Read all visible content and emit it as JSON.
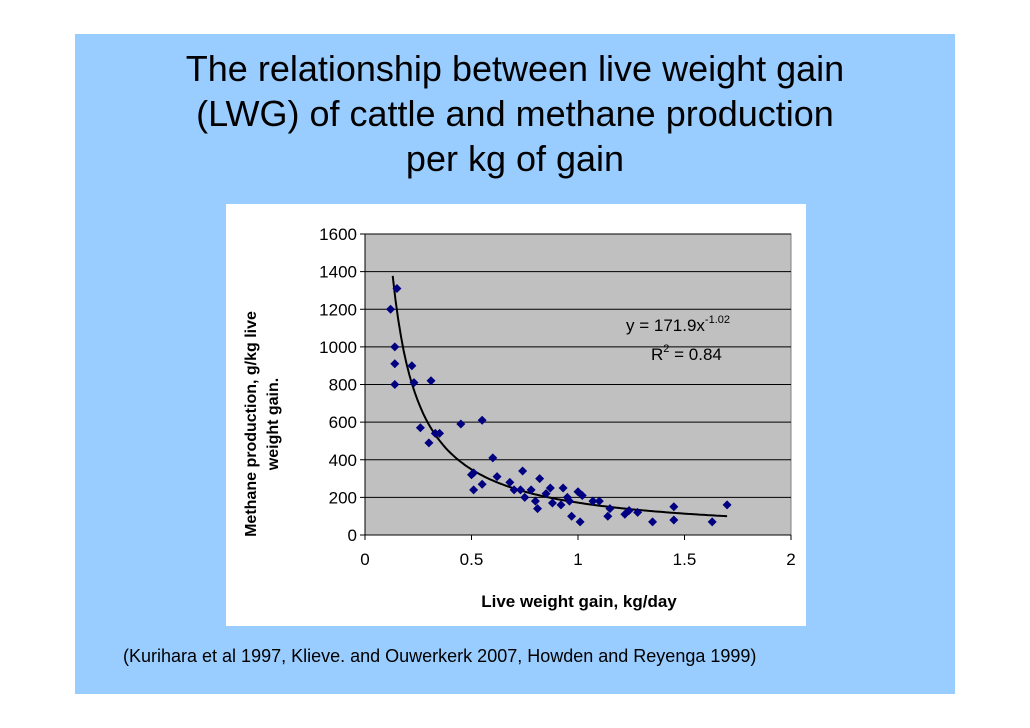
{
  "slide": {
    "title_lines": [
      "The relationship between live weight gain",
      "(LWG) of cattle and methane production",
      "per kg of gain"
    ],
    "citation": "(Kurihara et al 1997, Klieve. and Ouwerkerk 2007, Howden  and Reyenga  1999)"
  },
  "colors": {
    "background": "#99ccff",
    "plot_area": "#c0c0c0",
    "points": "#000080",
    "trendline": "#000000"
  },
  "chart_data": {
    "type": "scatter",
    "title": "",
    "xlabel": "Live weight gain, kg/day",
    "ylabel_lines": [
      "Methane production, g/kg live",
      "weight gain."
    ],
    "xlim": [
      0,
      2
    ],
    "ylim": [
      0,
      1600
    ],
    "xticks": [
      0,
      0.5,
      1,
      1.5,
      2
    ],
    "xtick_labels": [
      "0",
      "0.5",
      "1",
      "1.5",
      "2"
    ],
    "yticks": [
      0,
      200,
      400,
      600,
      800,
      1000,
      1200,
      1400,
      1600
    ],
    "ytick_labels": [
      "0",
      "200",
      "400",
      "600",
      "800",
      "1000",
      "1200",
      "1400",
      "1600"
    ],
    "grid": "horizontal",
    "equation_text": "y = 171.9x",
    "equation_exponent": "-1.02",
    "r2_text": "R",
    "r2_exponent": "2",
    "r2_value": " = 0.84",
    "trendline": {
      "type": "power",
      "a": 171.9,
      "b": -1.02,
      "x_range": [
        0.13,
        1.7
      ]
    },
    "points": [
      {
        "x": 0.12,
        "y": 1200
      },
      {
        "x": 0.15,
        "y": 1310
      },
      {
        "x": 0.14,
        "y": 1000
      },
      {
        "x": 0.14,
        "y": 910
      },
      {
        "x": 0.14,
        "y": 800
      },
      {
        "x": 0.22,
        "y": 900
      },
      {
        "x": 0.23,
        "y": 810
      },
      {
        "x": 0.26,
        "y": 570
      },
      {
        "x": 0.3,
        "y": 490
      },
      {
        "x": 0.31,
        "y": 820
      },
      {
        "x": 0.33,
        "y": 540
      },
      {
        "x": 0.35,
        "y": 540
      },
      {
        "x": 0.45,
        "y": 590
      },
      {
        "x": 0.5,
        "y": 320
      },
      {
        "x": 0.51,
        "y": 240
      },
      {
        "x": 0.51,
        "y": 330
      },
      {
        "x": 0.55,
        "y": 610
      },
      {
        "x": 0.55,
        "y": 270
      },
      {
        "x": 0.6,
        "y": 410
      },
      {
        "x": 0.62,
        "y": 310
      },
      {
        "x": 0.68,
        "y": 280
      },
      {
        "x": 0.7,
        "y": 240
      },
      {
        "x": 0.73,
        "y": 240
      },
      {
        "x": 0.74,
        "y": 340
      },
      {
        "x": 0.75,
        "y": 200
      },
      {
        "x": 0.78,
        "y": 240
      },
      {
        "x": 0.8,
        "y": 180
      },
      {
        "x": 0.81,
        "y": 140
      },
      {
        "x": 0.82,
        "y": 300
      },
      {
        "x": 0.85,
        "y": 220
      },
      {
        "x": 0.87,
        "y": 250
      },
      {
        "x": 0.88,
        "y": 170
      },
      {
        "x": 0.92,
        "y": 160
      },
      {
        "x": 0.93,
        "y": 250
      },
      {
        "x": 0.95,
        "y": 200
      },
      {
        "x": 0.96,
        "y": 180
      },
      {
        "x": 0.97,
        "y": 100
      },
      {
        "x": 1.0,
        "y": 230
      },
      {
        "x": 1.01,
        "y": 70
      },
      {
        "x": 1.02,
        "y": 210
      },
      {
        "x": 1.07,
        "y": 180
      },
      {
        "x": 1.1,
        "y": 180
      },
      {
        "x": 1.14,
        "y": 100
      },
      {
        "x": 1.15,
        "y": 140
      },
      {
        "x": 1.22,
        "y": 110
      },
      {
        "x": 1.24,
        "y": 130
      },
      {
        "x": 1.28,
        "y": 120
      },
      {
        "x": 1.35,
        "y": 70
      },
      {
        "x": 1.45,
        "y": 150
      },
      {
        "x": 1.45,
        "y": 80
      },
      {
        "x": 1.63,
        "y": 70
      },
      {
        "x": 1.7,
        "y": 160
      }
    ]
  }
}
